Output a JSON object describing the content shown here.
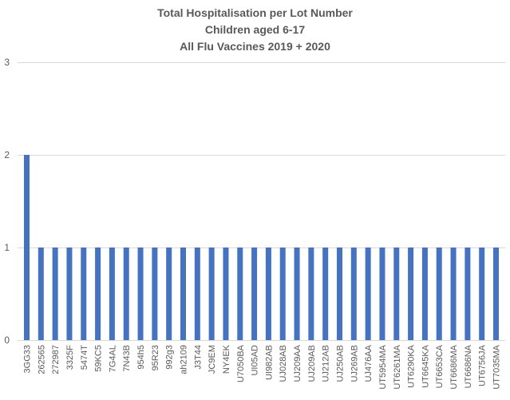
{
  "chart_data": {
    "type": "bar",
    "title": [
      "Total Hospitalisation per Lot Number",
      "Children aged 6-17",
      "All Flu Vaccines 2019 + 2020"
    ],
    "xlabel": "",
    "ylabel": "",
    "ylim": [
      0,
      3
    ],
    "yticks": [
      0,
      1,
      2,
      3
    ],
    "grid": true,
    "legend": "none",
    "bar_color": "#4472c4",
    "grid_color": "#d9d9d9",
    "text_color": "#595959",
    "categories": [
      "3GG33",
      "262565",
      "272987",
      "3325F",
      "5474T",
      "59KC5",
      "7G4AL",
      "7N43B",
      "954h5",
      "95R23",
      "992g3",
      "ah2109",
      "J3T44",
      "JC9EM",
      "NY4EK",
      "U7050BA",
      "UI05AD",
      "UI982AB",
      "UJ028AB",
      "UJ209AA",
      "UJ209AB",
      "UJ212AB",
      "UJ250AB",
      "UJ269AB",
      "UJ476AA",
      "UT5954MA",
      "UT6261MA",
      "UT6290KA",
      "UT6645KA",
      "UT6653CA",
      "UT6686MA",
      "UT6686NA",
      "UT6756JA",
      "UT7035MA"
    ],
    "values": [
      2,
      1,
      1,
      1,
      1,
      1,
      1,
      1,
      1,
      1,
      1,
      1,
      1,
      1,
      1,
      1,
      1,
      1,
      1,
      1,
      1,
      1,
      1,
      1,
      1,
      1,
      1,
      1,
      1,
      1,
      1,
      1,
      1,
      1
    ]
  }
}
